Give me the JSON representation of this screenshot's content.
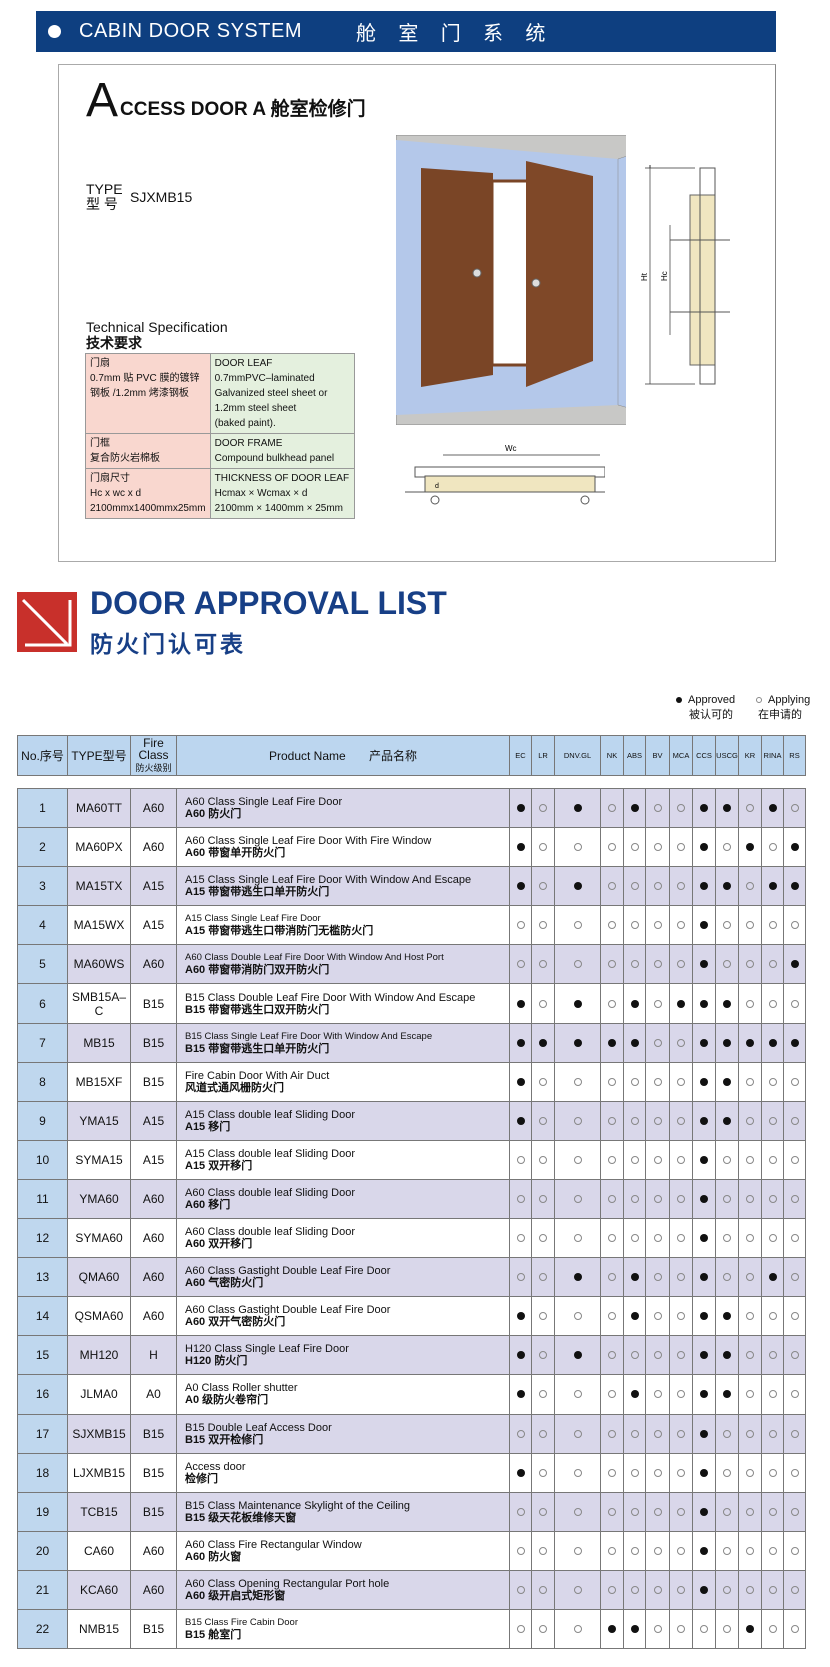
{
  "banner": {
    "title": "CABIN DOOR SYSTEM",
    "title_cn": "舱 室 门 系 统"
  },
  "product": {
    "title_initial": "A",
    "title_rest": "CCESS DOOR  A 舱室检修门",
    "type_label": "TYPE",
    "type_label_cn": "型  号",
    "type_value": "SJXMB15"
  },
  "spec": {
    "heading": "Technical Specification",
    "heading_cn": "技术要求",
    "rows": [
      {
        "cn": [
          "门扇",
          "0.7mm 贴 PVC 膜的镀锌",
          "钢板 /1.2mm 烤漆钢板"
        ],
        "en": [
          "DOOR LEAF",
          "0.7mmPVC–laminated",
          "Galvanized steel sheet or",
          "1.2mm steel sheet",
          "(baked paint)."
        ]
      },
      {
        "cn": [
          "门框",
          "复合防火岩棉板"
        ],
        "en": [
          "DOOR FRAME",
          "Compound bulkhead panel"
        ]
      },
      {
        "cn": [
          "门扇尺寸",
          "Hc x wc x d",
          "2100mmx1400mmx25mm"
        ],
        "en": [
          "THICKNESS OF DOOR LEAF",
          "Hcmax × Wcmax × d",
          "2100mm × 1400mm × 25mm"
        ]
      }
    ]
  },
  "drawing_labels": {
    "ht": "Ht",
    "hc": "Hc",
    "wc": "Wc",
    "d": "d"
  },
  "approval": {
    "title": "DOOR APPROVAL LIST",
    "title_cn": "防火门认可表",
    "legend": {
      "approved": "Approved",
      "approved_cn": "被认可的",
      "applying": "Applying",
      "applying_cn": "在申请的"
    },
    "headers": {
      "no": "No.序号",
      "type": "TYPE型号",
      "fire_class": "Fire Class",
      "fire_class_cn": "防火级别",
      "product": "Product Name       产品名称"
    },
    "societies": [
      "EC",
      "LR",
      "DNV.GL",
      "NK",
      "ABS",
      "BV",
      "MCA",
      "CCS",
      "USCG",
      "KR",
      "RINA",
      "RS"
    ],
    "rows": [
      {
        "no": "1",
        "type": "MA60TT",
        "cls": "A60",
        "en": "A60 Class Single Leaf Fire Door",
        "cn": "A60 防火门",
        "marks": [
          1,
          0,
          1,
          0,
          1,
          0,
          0,
          1,
          1,
          0,
          1,
          0
        ]
      },
      {
        "no": "2",
        "type": "MA60PX",
        "cls": "A60",
        "en": "A60 Class Single Leaf Fire Door With Fire Window",
        "cn": "A60 带窗单开防火门",
        "marks": [
          1,
          0,
          0,
          0,
          0,
          0,
          0,
          1,
          0,
          1,
          0,
          1
        ]
      },
      {
        "no": "3",
        "type": "MA15TX",
        "cls": "A15",
        "en": "A15 Class Single Leaf Fire Door With Window And Escape",
        "cn": "A15 带窗带逃生口单开防火门",
        "marks": [
          1,
          0,
          1,
          0,
          0,
          0,
          0,
          1,
          1,
          0,
          1,
          1
        ]
      },
      {
        "no": "4",
        "type": "MA15WX",
        "cls": "A15",
        "en": "A15 Class Single Leaf Fire Door",
        "cn": "A15 带窗带逃生口带消防门无槛防火门",
        "marks": [
          0,
          0,
          0,
          0,
          0,
          0,
          0,
          1,
          0,
          0,
          0,
          0
        ]
      },
      {
        "no": "5",
        "type": "MA60WS",
        "cls": "A60",
        "en": "A60 Class Double Leaf Fire Door With Window And Host Port",
        "cn": "A60 带窗带消防门双开防火门",
        "marks": [
          0,
          0,
          0,
          0,
          0,
          0,
          0,
          1,
          0,
          0,
          0,
          1
        ]
      },
      {
        "no": "6",
        "type": "SMB15A–C",
        "cls": "B15",
        "en": "B15 Class Double Leaf Fire Door With Window And Escape",
        "cn": "B15 带窗带逃生口双开防火门",
        "marks": [
          1,
          0,
          1,
          0,
          1,
          0,
          1,
          1,
          1,
          0,
          0,
          0
        ]
      },
      {
        "no": "7",
        "type": "MB15",
        "cls": "B15",
        "en": "B15 Class Single Leaf Fire Door With Window And Escape",
        "cn": "B15 带窗带逃生口单开防火门",
        "marks": [
          1,
          1,
          1,
          1,
          1,
          0,
          0,
          1,
          1,
          1,
          1,
          1
        ]
      },
      {
        "no": "8",
        "type": "MB15XF",
        "cls": "B15",
        "en": "Fire Cabin Door With Air Duct",
        "cn": "风道式通风栅防火门",
        "marks": [
          1,
          0,
          0,
          0,
          0,
          0,
          0,
          1,
          1,
          0,
          0,
          0
        ]
      },
      {
        "no": "9",
        "type": "YMA15",
        "cls": "A15",
        "en": "A15 Class double leaf Sliding Door",
        "cn": "A15 移门",
        "marks": [
          1,
          0,
          0,
          0,
          0,
          0,
          0,
          1,
          1,
          0,
          0,
          0
        ]
      },
      {
        "no": "10",
        "type": "SYMA15",
        "cls": "A15",
        "en": "A15 Class double leaf Sliding Door",
        "cn": "A15 双开移门",
        "marks": [
          0,
          0,
          0,
          0,
          0,
          0,
          0,
          1,
          0,
          0,
          0,
          0
        ]
      },
      {
        "no": "11",
        "type": "YMA60",
        "cls": "A60",
        "en": "A60 Class double leaf Sliding Door",
        "cn": "A60 移门",
        "marks": [
          0,
          0,
          0,
          0,
          0,
          0,
          0,
          1,
          0,
          0,
          0,
          0
        ]
      },
      {
        "no": "12",
        "type": "SYMA60",
        "cls": "A60",
        "en": "A60 Class double leaf Sliding Door",
        "cn": "A60 双开移门",
        "marks": [
          0,
          0,
          0,
          0,
          0,
          0,
          0,
          1,
          0,
          0,
          0,
          0
        ]
      },
      {
        "no": "13",
        "type": "QMA60",
        "cls": "A60",
        "en": "A60 Class Gastight Double Leaf Fire Door",
        "cn": "A60 气密防火门",
        "marks": [
          0,
          0,
          1,
          0,
          1,
          0,
          0,
          1,
          0,
          0,
          1,
          0
        ]
      },
      {
        "no": "14",
        "type": "QSMA60",
        "cls": "A60",
        "en": "A60 Class Gastight Double Leaf Fire Door",
        "cn": "A60 双开气密防火门",
        "marks": [
          1,
          0,
          0,
          0,
          1,
          0,
          0,
          1,
          1,
          0,
          0,
          0
        ]
      },
      {
        "no": "15",
        "type": "MH120",
        "cls": "H",
        "en": "H120 Class Single Leaf Fire Door",
        "cn": "H120 防火门",
        "marks": [
          1,
          0,
          1,
          0,
          0,
          0,
          0,
          1,
          1,
          0,
          0,
          0
        ]
      },
      {
        "no": "16",
        "type": "JLMA0",
        "cls": "A0",
        "en": "A0 Class Roller shutter",
        "cn": "A0 级防火卷帘门",
        "marks": [
          1,
          0,
          0,
          0,
          1,
          0,
          0,
          1,
          1,
          0,
          0,
          0
        ]
      },
      {
        "no": "17",
        "type": "SJXMB15",
        "cls": "B15",
        "en": "B15  Double Leaf Access Door",
        "cn": "B15 双开检修门",
        "marks": [
          0,
          0,
          0,
          0,
          0,
          0,
          0,
          1,
          0,
          0,
          0,
          0
        ]
      },
      {
        "no": "18",
        "type": "LJXMB15",
        "cls": "B15",
        "en": "Access door",
        "cn": "检修门",
        "marks": [
          1,
          0,
          0,
          0,
          0,
          0,
          0,
          1,
          0,
          0,
          0,
          0
        ]
      },
      {
        "no": "19",
        "type": "TCB15",
        "cls": "B15",
        "en": "B15 Class Maintenance Skylight of the Ceiling",
        "cn": "B15 级天花板维修天窗",
        "marks": [
          0,
          0,
          0,
          0,
          0,
          0,
          0,
          1,
          0,
          0,
          0,
          0
        ]
      },
      {
        "no": "20",
        "type": "CA60",
        "cls": "A60",
        "en": "A60 Class Fire Rectangular Window",
        "cn": "A60 防火窗",
        "marks": [
          0,
          0,
          0,
          0,
          0,
          0,
          0,
          1,
          0,
          0,
          0,
          0
        ]
      },
      {
        "no": "21",
        "type": "KCA60",
        "cls": "A60",
        "en": "A60 Class  Opening Rectangular Port hole",
        "cn": "A60 级开启式矩形窗",
        "marks": [
          0,
          0,
          0,
          0,
          0,
          0,
          0,
          1,
          0,
          0,
          0,
          0
        ]
      },
      {
        "no": "22",
        "type": "NMB15",
        "cls": "B15",
        "en": "B15 Class Fire Cabin Door",
        "cn": "B15 舱室门",
        "marks": [
          0,
          0,
          0,
          1,
          1,
          0,
          0,
          0,
          0,
          1,
          0,
          0
        ]
      }
    ]
  },
  "colors": {
    "banner": "#0e3f80",
    "approval_title": "#173f86",
    "logo_red": "#c8302b",
    "header_blue": "#bcd6ef",
    "row_lavender": "#d9d7ea",
    "spec_cn": "#f9d7cf",
    "spec_en": "#e4f0de",
    "wall": "#b4c8ea",
    "door_wood": "#7a4526"
  }
}
